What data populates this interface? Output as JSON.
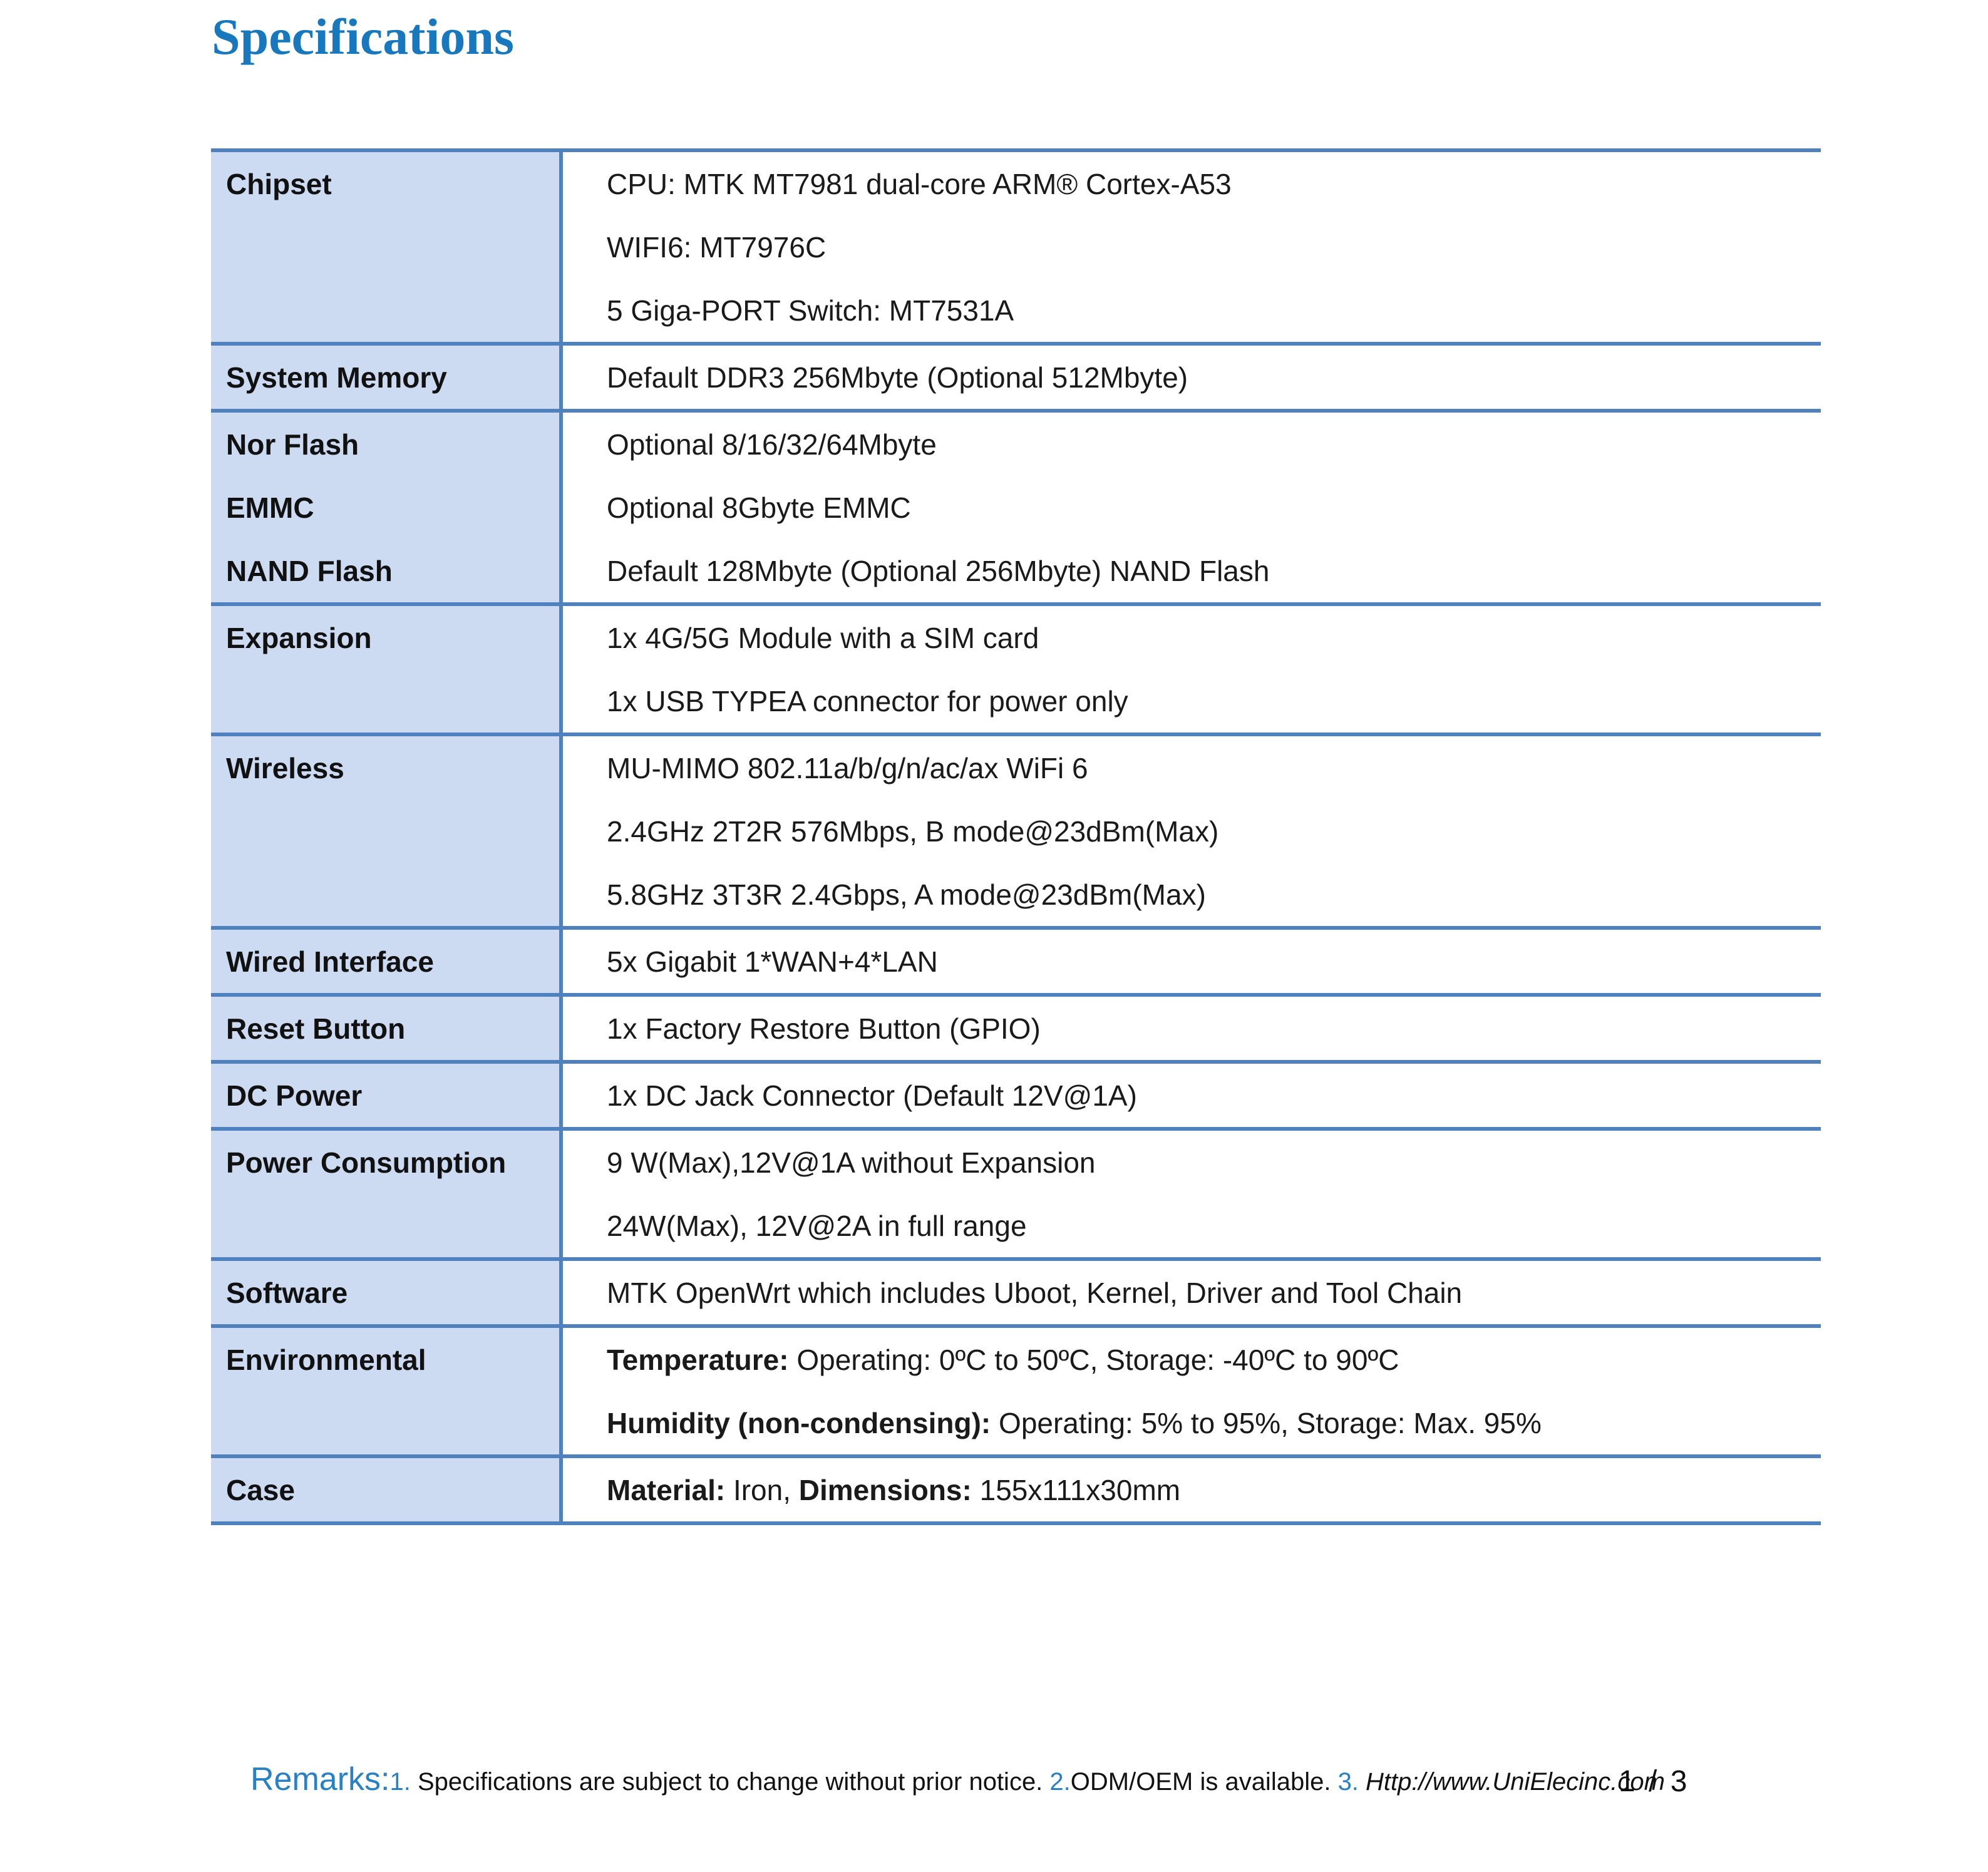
{
  "title": "Specifications",
  "colors": {
    "accent_blue": "#1878bd",
    "border_blue": "#4e81bd",
    "label_bg": "#ccdbf2",
    "footer_blue": "#2a80c4",
    "text": "#1a1a1a"
  },
  "table": {
    "rows": [
      {
        "labels": [
          "Chipset"
        ],
        "values": [
          [
            {
              "t": "CPU: MTK MT7981 dual-core ARM® Cortex-A53"
            }
          ],
          [
            {
              "t": "WIFI6: MT7976C"
            }
          ],
          [
            {
              "t": "5 Giga-PORT Switch: MT7531A"
            }
          ]
        ]
      },
      {
        "labels": [
          "System Memory"
        ],
        "values": [
          [
            {
              "t": "Default DDR3 256Mbyte (Optional 512Mbyte)"
            }
          ]
        ]
      },
      {
        "labels": [
          "Nor Flash",
          "EMMC",
          "NAND Flash"
        ],
        "values": [
          [
            {
              "t": "Optional 8/16/32/64Mbyte"
            }
          ],
          [
            {
              "t": "Optional 8Gbyte EMMC"
            }
          ],
          [
            {
              "t": "Default 128Mbyte (Optional 256Mbyte) NAND Flash"
            }
          ]
        ]
      },
      {
        "labels": [
          "Expansion"
        ],
        "values": [
          [
            {
              "t": "1x 4G/5G Module with a SIM card"
            }
          ],
          [
            {
              "t": "1x USB TYPEA connector for power only"
            }
          ]
        ]
      },
      {
        "labels": [
          "Wireless"
        ],
        "values": [
          [
            {
              "t": "MU-MIMO 802.11a/b/g/n/ac/ax WiFi 6"
            }
          ],
          [
            {
              "t": "2.4GHz 2T2R 576Mbps, B mode@23dBm(Max)"
            }
          ],
          [
            {
              "t": "5.8GHz 3T3R 2.4Gbps, A mode@23dBm(Max)"
            }
          ]
        ]
      },
      {
        "labels": [
          "Wired Interface"
        ],
        "values": [
          [
            {
              "t": "5x Gigabit 1*WAN+4*LAN"
            }
          ]
        ]
      },
      {
        "labels": [
          "Reset Button"
        ],
        "values": [
          [
            {
              "t": "1x Factory Restore Button (GPIO)"
            }
          ]
        ]
      },
      {
        "labels": [
          "DC Power"
        ],
        "values": [
          [
            {
              "t": "1x DC Jack Connector (Default 12V@1A)"
            }
          ]
        ]
      },
      {
        "labels": [
          "Power Consumption"
        ],
        "values": [
          [
            {
              "t": "9 W(Max),12V@1A without Expansion"
            }
          ],
          [
            {
              "t": "24W(Max), 12V@2A in full range"
            }
          ]
        ]
      },
      {
        "labels": [
          "Software"
        ],
        "values": [
          [
            {
              "t": "MTK OpenWrt which includes Uboot, Kernel, Driver and Tool Chain"
            }
          ]
        ]
      },
      {
        "labels": [
          "Environmental"
        ],
        "values": [
          [
            {
              "t": "Temperature:",
              "b": true
            },
            {
              "t": " Operating: 0ºC to 50ºC, Storage: -40ºC to 90ºC"
            }
          ],
          [
            {
              "t": "Humidity (non-condensing):",
              "b": true
            },
            {
              "t": " Operating: 5% to 95%, Storage: Max. 95%"
            }
          ]
        ]
      },
      {
        "labels": [
          "Case"
        ],
        "values": [
          [
            {
              "t": "Material:",
              "b": true
            },
            {
              "t": " Iron, "
            },
            {
              "t": "Dimensions:",
              "b": true
            },
            {
              "t": " 155x111x30mm"
            }
          ]
        ]
      }
    ]
  },
  "footer": {
    "segments": [
      {
        "style": "remarks",
        "text": "Remarks:"
      },
      {
        "style": "num",
        "text": "1."
      },
      {
        "style": "plain",
        "text": " Specifications are subject to change without prior notice. "
      },
      {
        "style": "num",
        "text": "2."
      },
      {
        "style": "plain",
        "text": "ODM/OEM is available. "
      },
      {
        "style": "num",
        "text": "3. "
      },
      {
        "style": "url",
        "text": "Http://www.UniElecinc.com"
      }
    ],
    "page_indicator": "1 / 3"
  }
}
